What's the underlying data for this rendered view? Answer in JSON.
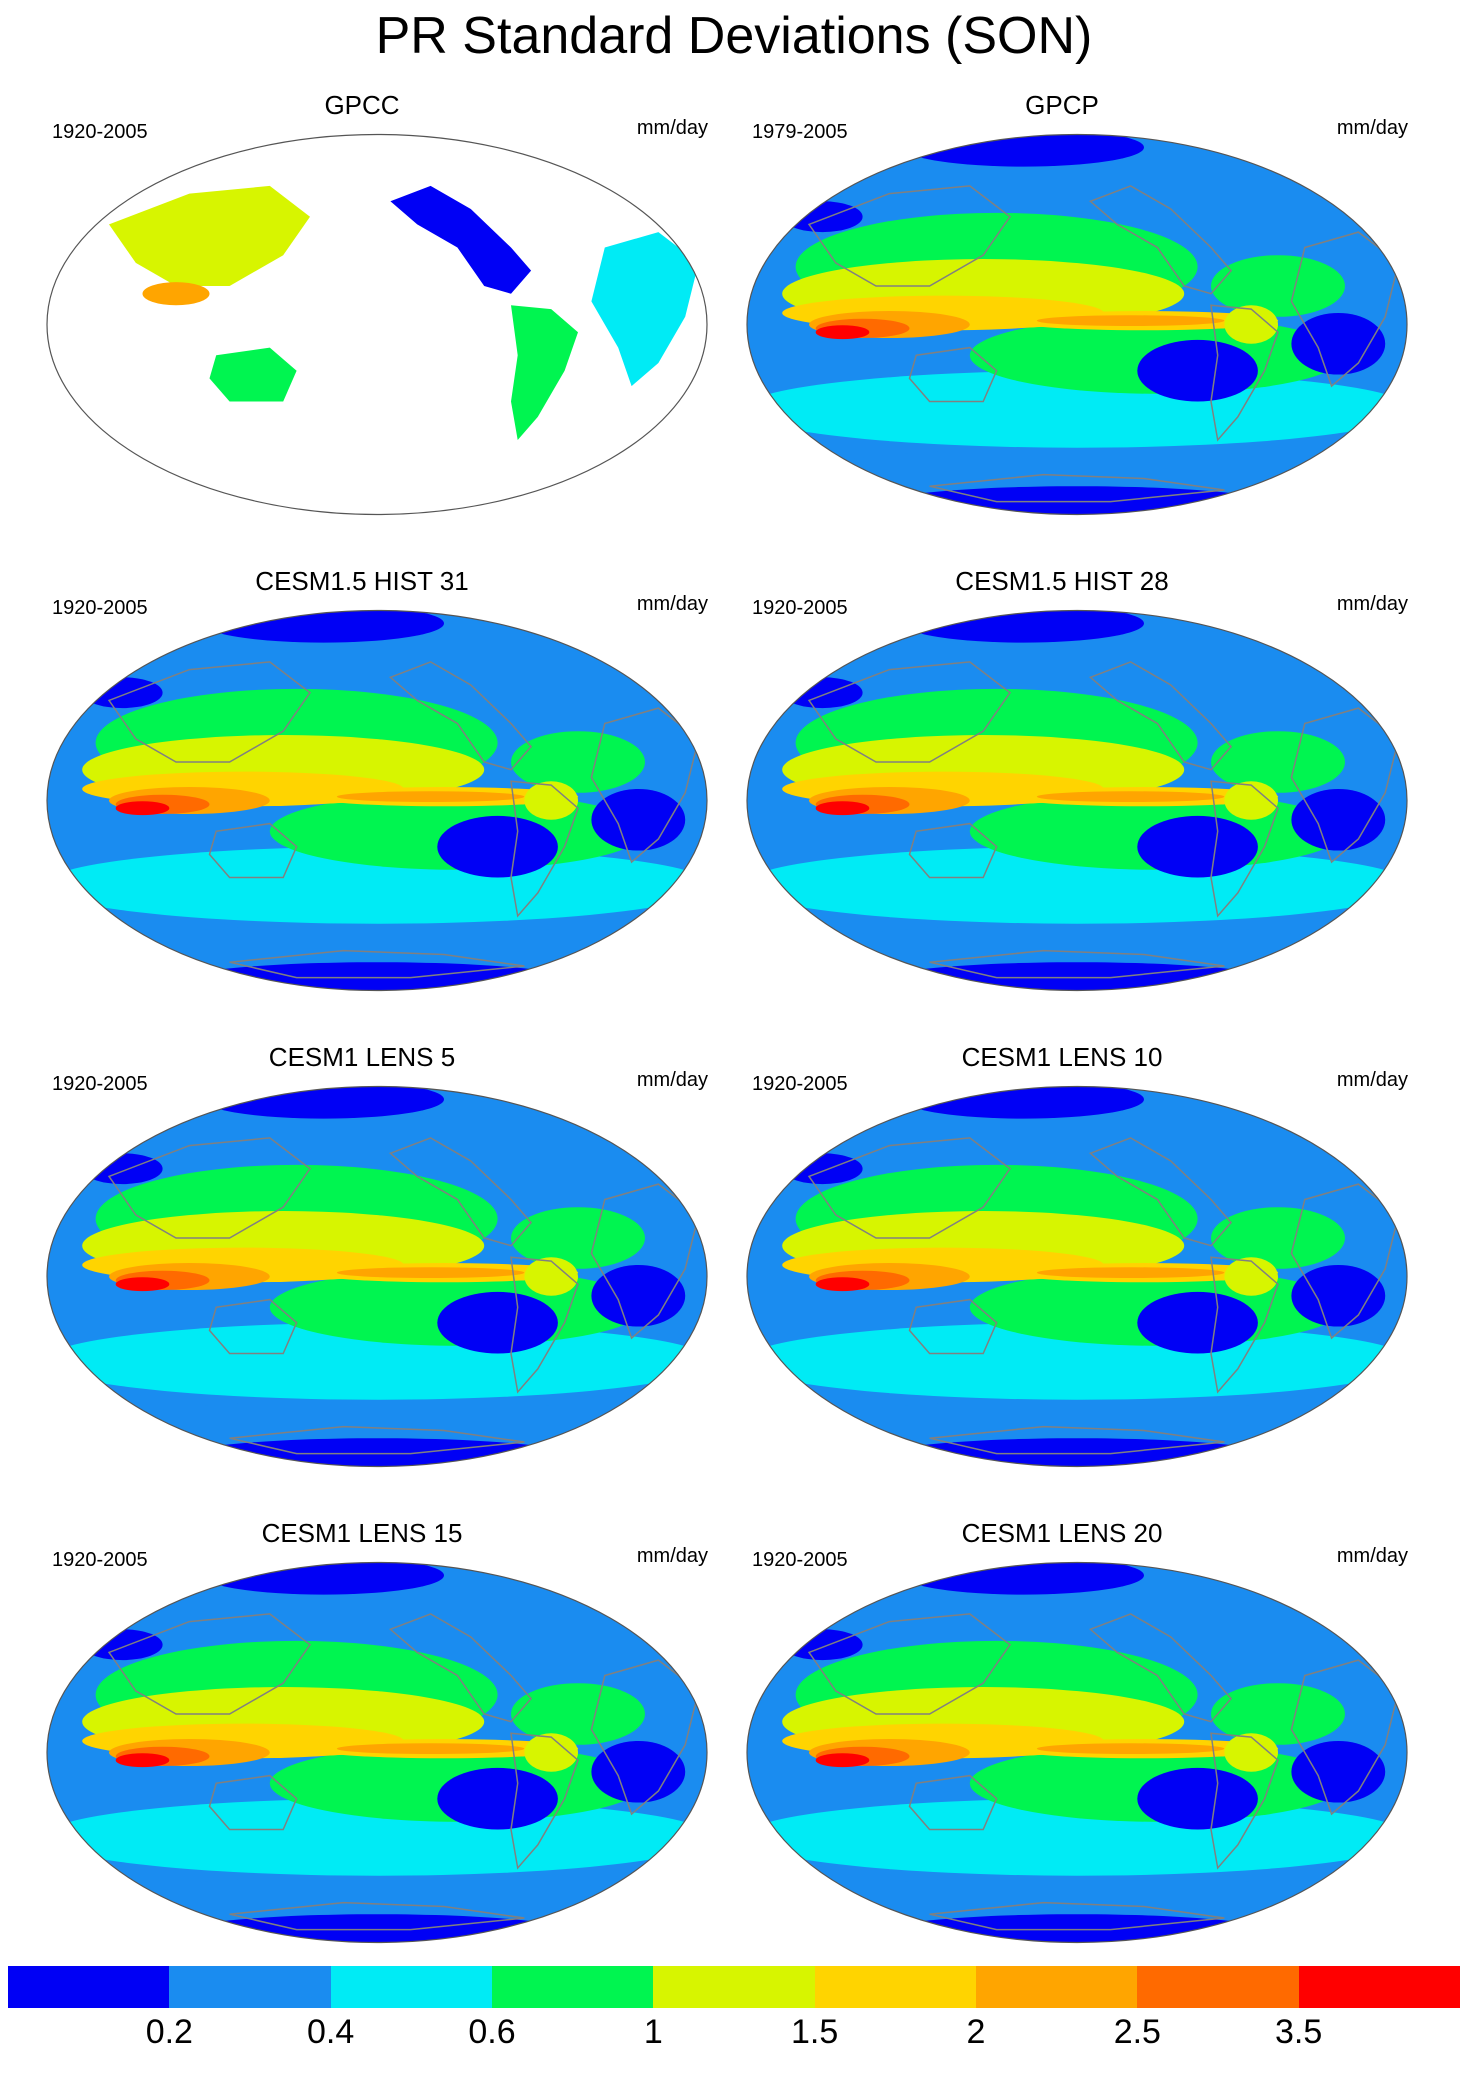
{
  "title": "PR Standard Deviations (SON)",
  "units": "mm/day",
  "panels": [
    {
      "title": "GPCC",
      "period": "1920-2005",
      "units": "mm/day",
      "land_only": true
    },
    {
      "title": "GPCP",
      "period": "1979-2005",
      "units": "mm/day",
      "land_only": false
    },
    {
      "title": "CESM1.5 HIST 31",
      "period": "1920-2005",
      "units": "mm/day",
      "land_only": false
    },
    {
      "title": "CESM1.5 HIST 28",
      "period": "1920-2005",
      "units": "mm/day",
      "land_only": false
    },
    {
      "title": "CESM1 LENS 5",
      "period": "1920-2005",
      "units": "mm/day",
      "land_only": false
    },
    {
      "title": "CESM1 LENS 10",
      "period": "1920-2005",
      "units": "mm/day",
      "land_only": false
    },
    {
      "title": "CESM1 LENS 15",
      "period": "1920-2005",
      "units": "mm/day",
      "land_only": false
    },
    {
      "title": "CESM1 LENS 20",
      "period": "1920-2005",
      "units": "mm/day",
      "land_only": false
    }
  ],
  "colorbar": {
    "colors": [
      "#0000f5",
      "#1a8cf0",
      "#00ebf5",
      "#00f550",
      "#d7f500",
      "#ffd400",
      "#ffa500",
      "#ff6a00",
      "#ff0000"
    ],
    "labels": [
      "0.2",
      "0.4",
      "0.6",
      "1",
      "1.5",
      "2",
      "2.5",
      "3.5"
    ]
  },
  "map_colors": {
    "background": "#1a8cf0",
    "land_outline": "#808080",
    "land_missing": "#ffffff"
  }
}
